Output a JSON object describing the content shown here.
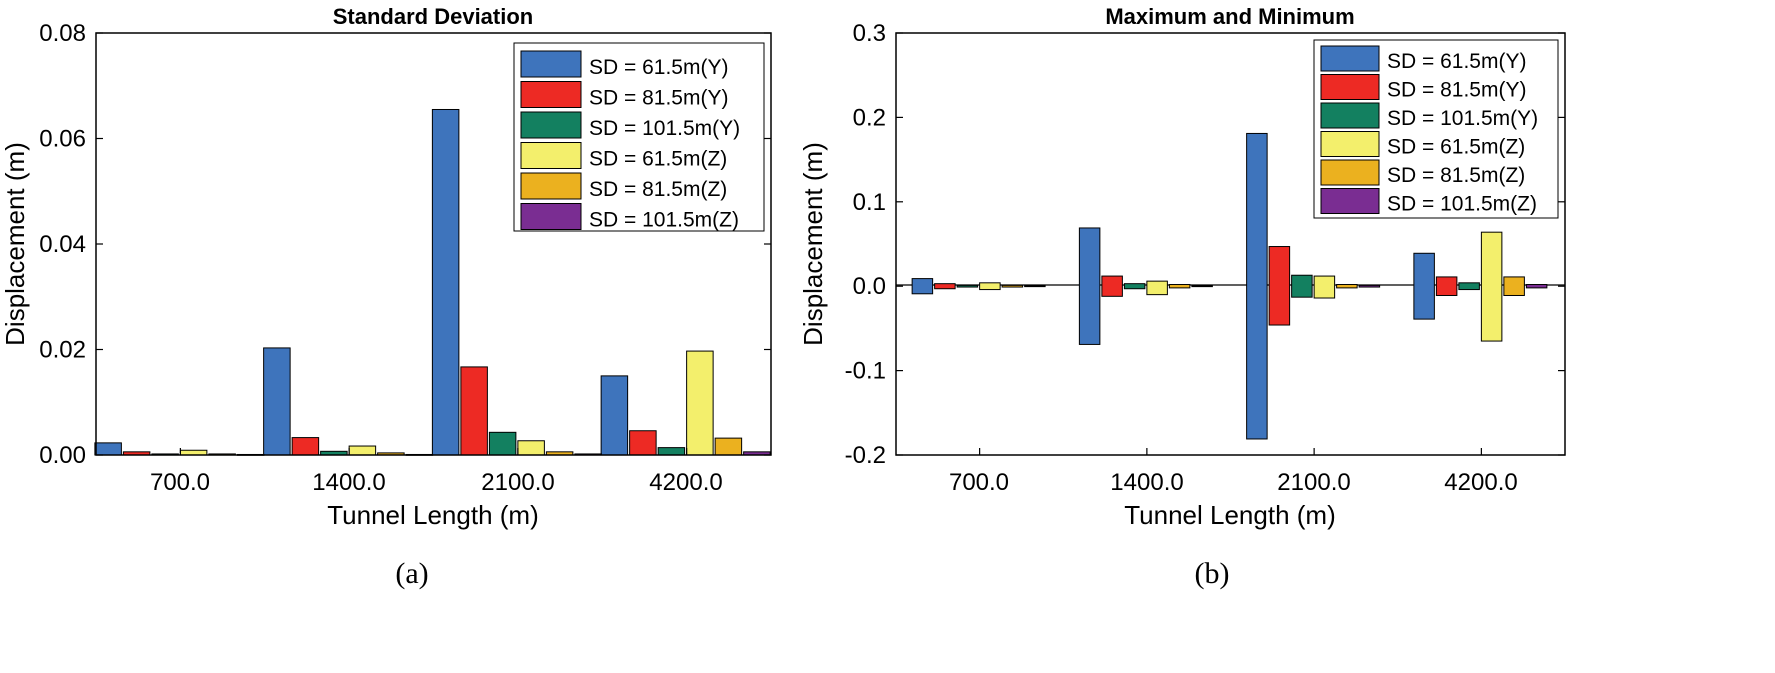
{
  "chart_data": [
    {
      "type": "bar",
      "title": "Standard Deviation",
      "xlabel": "Tunnel Length (m)",
      "ylabel": "Displacement (m)",
      "ylim": [
        0,
        0.08
      ],
      "yticks": [
        "0.00",
        "0.02",
        "0.04",
        "0.06",
        "0.08"
      ],
      "categories": [
        "700.0",
        "1400.0",
        "2100.0",
        "4200.0"
      ],
      "legend_position": "top-right",
      "caption": "(a)",
      "series": [
        {
          "name": "SD = 61.5m(Y)",
          "color": "#3E74BC",
          "values": [
            0.0023,
            0.0203,
            0.0655,
            0.015
          ]
        },
        {
          "name": "SD = 81.5m(Y)",
          "color": "#ED2A24",
          "values": [
            0.0006,
            0.0033,
            0.0167,
            0.0046
          ]
        },
        {
          "name": "SD = 101.5m(Y)",
          "color": "#138060",
          "values": [
            0.0002,
            0.0007,
            0.0043,
            0.0014
          ]
        },
        {
          "name": "SD = 61.5m(Z)",
          "color": "#F3EF6C",
          "values": [
            0.0009,
            0.0017,
            0.0027,
            0.0197
          ]
        },
        {
          "name": "SD = 81.5m(Z)",
          "color": "#EBB11F",
          "values": [
            0.0002,
            0.0004,
            0.0006,
            0.0032
          ]
        },
        {
          "name": "SD = 101.5m(Z)",
          "color": "#7A2D92",
          "values": [
            0.0001,
            0.0001,
            0.0002,
            0.0006
          ]
        }
      ]
    },
    {
      "type": "bar",
      "title": "Maximum and Minimum",
      "xlabel": "Tunnel Length (m)",
      "ylabel": "Displacement (m)",
      "ylim": [
        -0.2,
        0.3
      ],
      "yticks": [
        "-0.2",
        "-0.1",
        "0.0",
        "0.1",
        "0.2",
        "0.3"
      ],
      "categories": [
        "700.0",
        "1400.0",
        "2100.0",
        "4200.0"
      ],
      "legend_position": "top-right",
      "caption": "(b)",
      "note": "bars span from min to max displacement",
      "series": [
        {
          "name": "SD = 61.5m(Y)",
          "color": "#3E74BC",
          "max": [
            0.009,
            0.069,
            0.181,
            0.039
          ],
          "min": [
            -0.009,
            -0.069,
            -0.181,
            -0.039
          ]
        },
        {
          "name": "SD = 81.5m(Y)",
          "color": "#ED2A24",
          "max": [
            0.003,
            0.012,
            0.047,
            0.011
          ],
          "min": [
            -0.003,
            -0.012,
            -0.046,
            -0.011
          ]
        },
        {
          "name": "SD = 101.5m(Y)",
          "color": "#138060",
          "max": [
            0.001,
            0.003,
            0.013,
            0.004
          ],
          "min": [
            -0.001,
            -0.003,
            -0.013,
            -0.004
          ]
        },
        {
          "name": "SD = 61.5m(Z)",
          "color": "#F3EF6C",
          "max": [
            0.004,
            0.006,
            0.012,
            0.064
          ],
          "min": [
            -0.004,
            -0.01,
            -0.014,
            -0.065
          ]
        },
        {
          "name": "SD = 81.5m(Z)",
          "color": "#EBB11F",
          "max": [
            0.001,
            0.002,
            0.002,
            0.011
          ],
          "min": [
            -0.001,
            -0.002,
            -0.002,
            -0.011
          ]
        },
        {
          "name": "SD = 101.5m(Z)",
          "color": "#7A2D92",
          "max": [
            0.0005,
            0.0005,
            0.001,
            0.002
          ],
          "min": [
            -0.0005,
            -0.0005,
            -0.001,
            -0.002
          ]
        }
      ]
    }
  ]
}
